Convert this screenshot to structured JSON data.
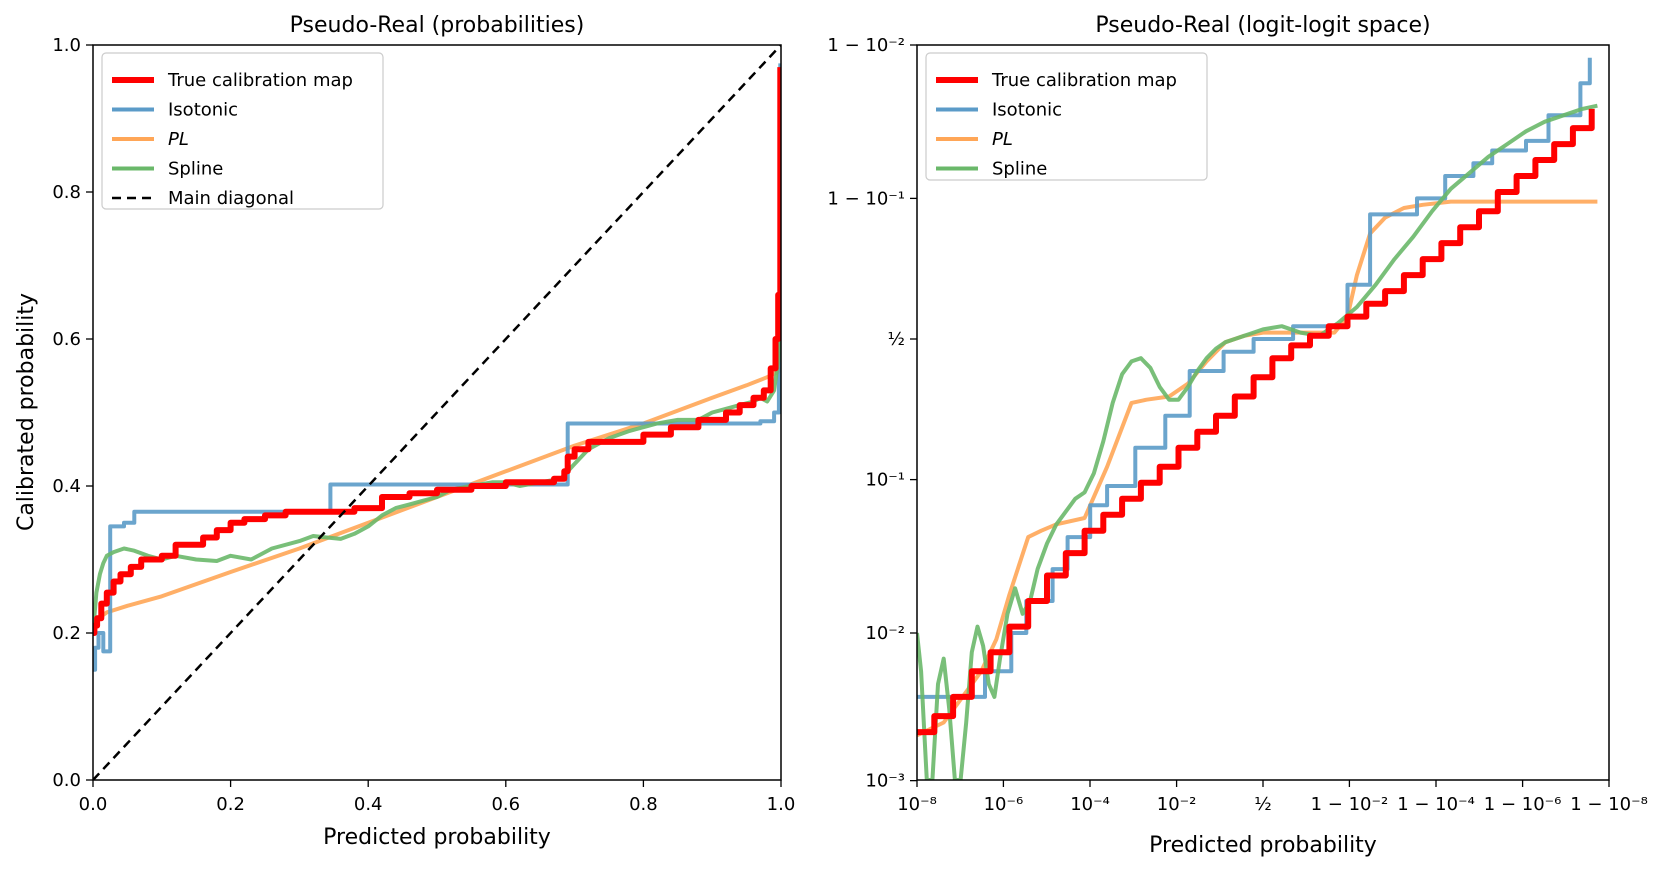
{
  "colors": {
    "true_map": "#ff0000",
    "isotonic": "#5b9bc8",
    "pl": "#ffa657",
    "spline": "#6ab86a",
    "diagonal": "#000000"
  },
  "chart_data": [
    {
      "type": "line",
      "title": "Pseudo-Real (probabilities)",
      "xlabel": "Predicted probability",
      "ylabel": "Calibrated probability",
      "xlim": [
        0,
        1
      ],
      "ylim": [
        0,
        1
      ],
      "xticks": [
        0.0,
        0.2,
        0.4,
        0.6,
        0.8,
        1.0
      ],
      "yticks": [
        0.0,
        0.2,
        0.4,
        0.6,
        0.8,
        1.0
      ],
      "xtick_labels": [
        "0.0",
        "0.2",
        "0.4",
        "0.6",
        "0.8",
        "1.0"
      ],
      "ytick_labels": [
        "0.0",
        "0.2",
        "0.4",
        "0.6",
        "0.8",
        "1.0"
      ],
      "grid": false,
      "legend_position": "top-left",
      "legend": [
        "True calibration map",
        "Isotonic",
        "PL",
        "Spline",
        "Main diagonal"
      ],
      "series": [
        {
          "name": "True calibration map",
          "style": "step",
          "x": [
            0.0,
            0.002,
            0.006,
            0.012,
            0.02,
            0.03,
            0.04,
            0.055,
            0.07,
            0.085,
            0.1,
            0.12,
            0.14,
            0.16,
            0.18,
            0.2,
            0.22,
            0.25,
            0.28,
            0.31,
            0.34,
            0.38,
            0.42,
            0.46,
            0.5,
            0.55,
            0.6,
            0.64,
            0.67,
            0.685,
            0.69,
            0.7,
            0.72,
            0.74,
            0.76,
            0.78,
            0.8,
            0.82,
            0.84,
            0.86,
            0.88,
            0.9,
            0.92,
            0.94,
            0.96,
            0.975,
            0.985,
            0.992,
            0.996,
            0.999
          ],
          "values": [
            0.2,
            0.21,
            0.22,
            0.24,
            0.255,
            0.27,
            0.28,
            0.29,
            0.3,
            0.3,
            0.305,
            0.32,
            0.32,
            0.33,
            0.34,
            0.35,
            0.355,
            0.36,
            0.365,
            0.365,
            0.365,
            0.37,
            0.385,
            0.39,
            0.395,
            0.4,
            0.405,
            0.405,
            0.41,
            0.42,
            0.44,
            0.45,
            0.46,
            0.46,
            0.46,
            0.46,
            0.47,
            0.47,
            0.48,
            0.48,
            0.49,
            0.49,
            0.5,
            0.51,
            0.52,
            0.53,
            0.56,
            0.6,
            0.66,
            0.97
          ]
        },
        {
          "name": "Isotonic",
          "style": "step",
          "x": [
            0.0,
            0.003,
            0.008,
            0.015,
            0.025,
            0.045,
            0.06,
            0.345,
            0.69,
            0.97,
            0.99,
            0.997,
            0.999
          ],
          "values": [
            0.15,
            0.18,
            0.2,
            0.175,
            0.345,
            0.35,
            0.365,
            0.402,
            0.485,
            0.488,
            0.5,
            0.62,
            0.975
          ]
        },
        {
          "name": "PL",
          "style": "line",
          "x": [
            0.0,
            0.005,
            0.02,
            0.05,
            0.1,
            0.2,
            0.3,
            0.4,
            0.5,
            0.6,
            0.7,
            0.8,
            0.9,
            0.95,
            0.98,
            0.995,
            1.0
          ],
          "values": [
            0.205,
            0.218,
            0.228,
            0.237,
            0.25,
            0.283,
            0.315,
            0.35,
            0.385,
            0.42,
            0.455,
            0.485,
            0.52,
            0.537,
            0.548,
            0.555,
            0.56
          ]
        },
        {
          "name": "Spline",
          "style": "line",
          "x": [
            0.0,
            0.005,
            0.01,
            0.015,
            0.02,
            0.03,
            0.045,
            0.06,
            0.08,
            0.1,
            0.12,
            0.15,
            0.18,
            0.2,
            0.23,
            0.26,
            0.3,
            0.32,
            0.34,
            0.36,
            0.38,
            0.4,
            0.42,
            0.44,
            0.46,
            0.48,
            0.5,
            0.52,
            0.55,
            0.58,
            0.6,
            0.62,
            0.65,
            0.68,
            0.7,
            0.72,
            0.75,
            0.78,
            0.8,
            0.82,
            0.85,
            0.88,
            0.9,
            0.92,
            0.94,
            0.96,
            0.97,
            0.98,
            0.99,
            0.996,
            1.0
          ],
          "values": [
            0.2,
            0.255,
            0.28,
            0.295,
            0.305,
            0.31,
            0.315,
            0.312,
            0.305,
            0.3,
            0.305,
            0.3,
            0.298,
            0.305,
            0.3,
            0.315,
            0.325,
            0.332,
            0.33,
            0.328,
            0.335,
            0.345,
            0.36,
            0.37,
            0.375,
            0.38,
            0.385,
            0.395,
            0.4,
            0.405,
            0.405,
            0.4,
            0.405,
            0.41,
            0.43,
            0.45,
            0.465,
            0.475,
            0.48,
            0.485,
            0.49,
            0.49,
            0.5,
            0.505,
            0.51,
            0.515,
            0.52,
            0.515,
            0.53,
            0.57,
            0.75
          ]
        },
        {
          "name": "Main diagonal",
          "style": "dashed",
          "x": [
            0.0,
            1.0
          ],
          "values": [
            0.0,
            1.0
          ]
        }
      ]
    },
    {
      "type": "line",
      "title": "Pseudo-Real (logit-logit space)",
      "xlabel": "Predicted probability",
      "ylabel": "",
      "scale": "logit-logit",
      "xlim_logit": [
        -18.42,
        18.42
      ],
      "ylim_logit": [
        -6.9,
        4.6
      ],
      "xtick_labels": [
        "10⁻⁸",
        "10⁻⁶",
        "10⁻⁴",
        "10⁻²",
        "½",
        "1 − 10⁻²",
        "1 − 10⁻⁴",
        "1 − 10⁻⁶",
        "1 − 10⁻⁸"
      ],
      "ytick_labels": [
        "10⁻³",
        "10⁻²",
        "10⁻¹",
        "½",
        "1 − 10⁻¹",
        "1 − 10⁻²"
      ],
      "grid": false,
      "legend_position": "top-left",
      "legend": [
        "True calibration map",
        "Isotonic",
        "PL",
        "Spline"
      ],
      "series": [
        {
          "name": "True calibration map",
          "style": "step",
          "x_logit": [
            -18.42,
            -17.5,
            -16.5,
            -15.5,
            -14.5,
            -13.5,
            -12.5,
            -11.5,
            -10.5,
            -9.5,
            -8.5,
            -7.5,
            -6.5,
            -5.5,
            -4.5,
            -3.5,
            -2.5,
            -1.5,
            -0.5,
            0.5,
            1.5,
            2.5,
            3.5,
            4.5,
            5.5,
            6.5,
            7.5,
            8.5,
            9.5,
            10.5,
            11.5,
            12.5,
            13.5,
            14.5,
            15.5,
            16.5,
            17.5
          ],
          "y_logit": [
            -6.15,
            -5.9,
            -5.6,
            -5.2,
            -4.9,
            -4.5,
            -4.1,
            -3.7,
            -3.35,
            -3.0,
            -2.75,
            -2.5,
            -2.25,
            -2.0,
            -1.7,
            -1.45,
            -1.2,
            -0.9,
            -0.6,
            -0.3,
            -0.1,
            0.05,
            0.2,
            0.35,
            0.55,
            0.75,
            1.0,
            1.25,
            1.5,
            1.75,
            2.0,
            2.3,
            2.55,
            2.8,
            3.05,
            3.3,
            3.6
          ]
        },
        {
          "name": "Isotonic",
          "style": "step",
          "x_logit": [
            -18.42,
            -16.9,
            -14.8,
            -13.4,
            -12.6,
            -11.2,
            -10.4,
            -9.2,
            -8.3,
            -6.8,
            -5.2,
            -3.9,
            -2.1,
            -0.5,
            1.6,
            4.5,
            5.7,
            8.2,
            9.7,
            11.2,
            12.2,
            14.0,
            15.2,
            16.9,
            17.4
          ],
          "y_logit": [
            -5.6,
            -5.6,
            -5.2,
            -4.6,
            -4.1,
            -3.6,
            -3.1,
            -2.6,
            -2.3,
            -1.7,
            -1.2,
            -0.5,
            -0.2,
            0.0,
            0.2,
            0.85,
            1.95,
            2.2,
            2.55,
            2.75,
            2.95,
            3.1,
            3.5,
            4.0,
            4.4
          ]
        },
        {
          "name": "PL",
          "style": "line",
          "x_logit": [
            -18.42,
            -17.0,
            -16.0,
            -15.0,
            -14.2,
            -13.5,
            -12.5,
            -11.8,
            -11.0,
            -9.5,
            -8.3,
            -7.0,
            -6.2,
            -5.0,
            -4.0,
            -3.0,
            -2.0,
            -1.0,
            0.0,
            1.0,
            2.0,
            3.0,
            3.8,
            4.5,
            5.0,
            5.7,
            6.5,
            7.5,
            8.5,
            10.0,
            12.0,
            14.0,
            16.0,
            17.8
          ],
          "y_logit": [
            -6.2,
            -6.0,
            -5.6,
            -5.2,
            -4.7,
            -4.0,
            -3.1,
            -3.0,
            -2.9,
            -2.8,
            -2.0,
            -1.0,
            -0.95,
            -0.9,
            -0.7,
            -0.35,
            -0.05,
            0.05,
            0.1,
            0.1,
            0.1,
            0.1,
            0.1,
            0.35,
            1.0,
            1.65,
            1.9,
            2.05,
            2.1,
            2.15,
            2.15,
            2.15,
            2.15,
            2.15
          ]
        },
        {
          "name": "Spline",
          "style": "line",
          "x_logit": [
            -18.42,
            -18.2,
            -17.9,
            -17.6,
            -17.3,
            -17.0,
            -16.7,
            -16.4,
            -16.1,
            -15.8,
            -15.5,
            -15.2,
            -14.9,
            -14.6,
            -14.3,
            -14.0,
            -13.6,
            -13.2,
            -12.8,
            -12.4,
            -12.0,
            -11.5,
            -11.0,
            -10.5,
            -10.0,
            -9.5,
            -9.0,
            -8.5,
            -8.0,
            -7.5,
            -7.0,
            -6.5,
            -6.0,
            -5.5,
            -5.0,
            -4.5,
            -4.0,
            -3.5,
            -3.0,
            -2.5,
            -2.0,
            -1.5,
            -1.0,
            -0.5,
            0.0,
            1.0,
            2.0,
            3.0,
            4.0,
            5.0,
            6.0,
            7.0,
            8.0,
            9.0,
            10.0,
            11.0,
            12.0,
            13.0,
            14.0,
            15.0,
            16.0,
            17.0,
            17.8
          ],
          "y_logit": [
            -4.6,
            -5.2,
            -6.9,
            -6.9,
            -5.4,
            -5.0,
            -5.8,
            -6.9,
            -6.9,
            -6.0,
            -4.9,
            -4.5,
            -4.8,
            -5.4,
            -5.6,
            -5.0,
            -4.3,
            -3.9,
            -4.3,
            -4.1,
            -3.6,
            -3.2,
            -2.9,
            -2.7,
            -2.5,
            -2.4,
            -2.1,
            -1.6,
            -1.0,
            -0.55,
            -0.35,
            -0.3,
            -0.45,
            -0.75,
            -0.95,
            -0.95,
            -0.75,
            -0.5,
            -0.3,
            -0.15,
            -0.05,
            0.0,
            0.05,
            0.1,
            0.15,
            0.2,
            0.1,
            0.05,
            0.25,
            0.5,
            0.85,
            1.25,
            1.6,
            2.0,
            2.35,
            2.6,
            2.85,
            3.05,
            3.25,
            3.4,
            3.5,
            3.6,
            3.65
          ]
        }
      ]
    }
  ]
}
